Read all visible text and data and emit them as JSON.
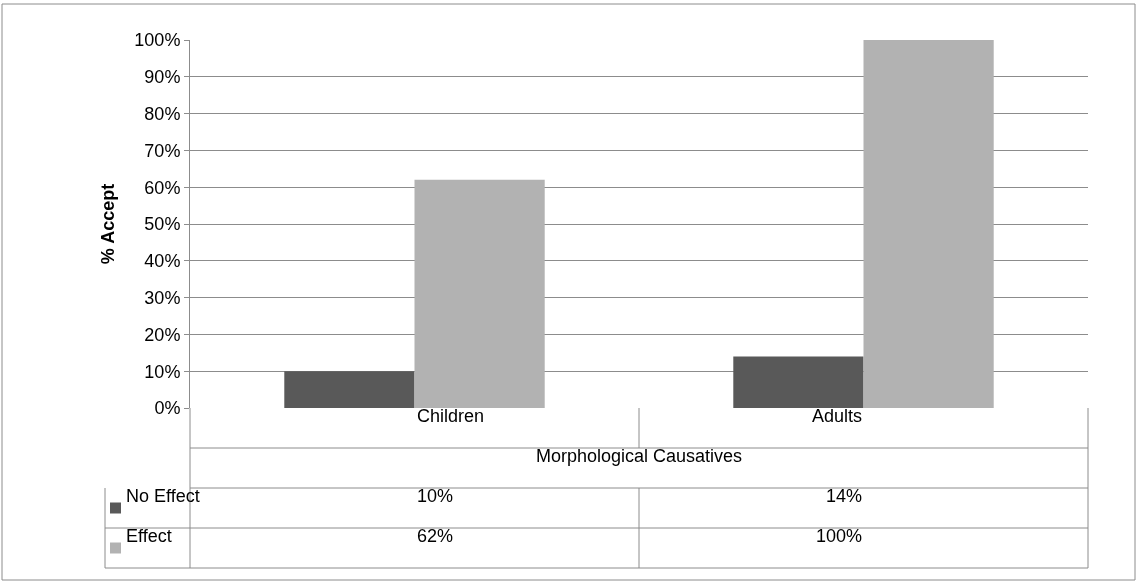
{
  "chart_data": {
    "type": "bar",
    "ylabel": "% Accept",
    "xlabel": "Morphological Causatives",
    "categories": [
      "Children",
      "Adults"
    ],
    "series": [
      {
        "name": "No Effect",
        "color": "#595959",
        "values": [
          10,
          14
        ],
        "value_labels": [
          "10%",
          "14%"
        ]
      },
      {
        "name": "Effect",
        "color": "#b2b2b2",
        "values": [
          62,
          100
        ],
        "value_labels": [
          "62%",
          "100%"
        ]
      }
    ],
    "ylim": [
      0,
      100
    ],
    "yticks": [
      {
        "value": 0,
        "label": "0%"
      },
      {
        "value": 10,
        "label": "10%"
      },
      {
        "value": 20,
        "label": "20%"
      },
      {
        "value": 30,
        "label": "30%"
      },
      {
        "value": 40,
        "label": "40%"
      },
      {
        "value": 50,
        "label": "50%"
      },
      {
        "value": 60,
        "label": "60%"
      },
      {
        "value": 70,
        "label": "70%"
      },
      {
        "value": 80,
        "label": "80%"
      },
      {
        "value": 90,
        "label": "90%"
      },
      {
        "value": 100,
        "label": "100%"
      }
    ],
    "grid": "y",
    "legend": "bottom"
  }
}
